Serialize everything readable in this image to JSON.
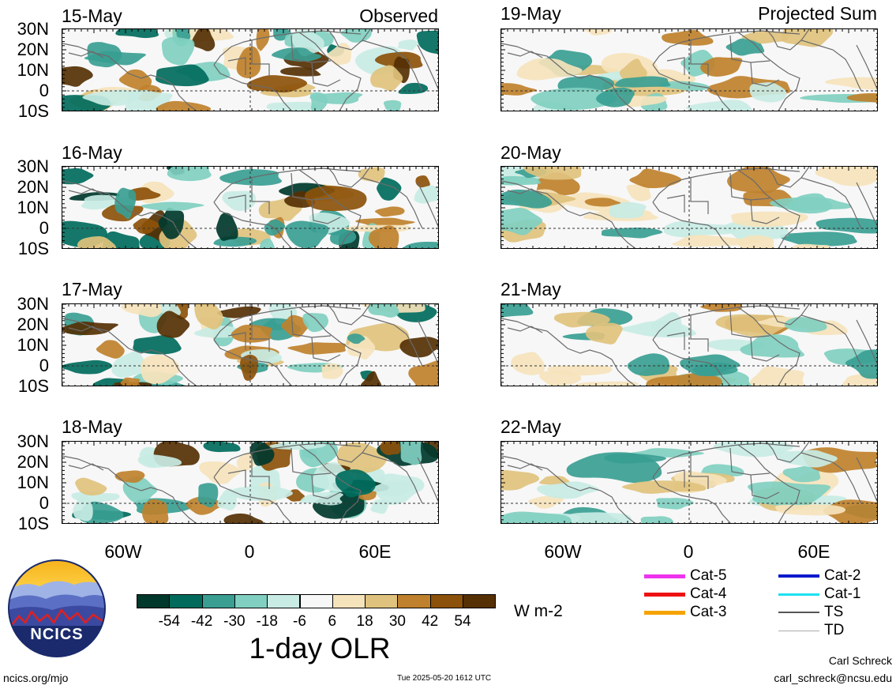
{
  "header": {
    "left_label": "Observed",
    "right_label": "Projected Sum"
  },
  "observed_panels": [
    {
      "date": "15-May"
    },
    {
      "date": "16-May"
    },
    {
      "date": "17-May"
    },
    {
      "date": "18-May"
    }
  ],
  "projected_panels": [
    {
      "date": "19-May"
    },
    {
      "date": "20-May"
    },
    {
      "date": "21-May"
    },
    {
      "date": "22-May"
    }
  ],
  "y_axis_labels": [
    "30N",
    "20N",
    "10N",
    "0",
    "10S"
  ],
  "x_axis_labels": [
    "60W",
    "0",
    "60E"
  ],
  "colorbar": {
    "title": "1-day OLR",
    "units": "W m-2",
    "tick_labels": [
      "-54",
      "-42",
      "-30",
      "-18",
      "-6",
      "6",
      "18",
      "30",
      "42",
      "54"
    ],
    "colors": [
      "#00382c",
      "#006b5c",
      "#3a9e92",
      "#80cfc0",
      "#c8ebe4",
      "#f7f7f7",
      "#f5e3bb",
      "#dfc27d",
      "#bf812d",
      "#8c510a",
      "#553004"
    ]
  },
  "legend": {
    "items": [
      {
        "label": "Cat-5",
        "color": "#ee33ee"
      },
      {
        "label": "Cat-4",
        "color": "#ee1111"
      },
      {
        "label": "Cat-3",
        "color": "#f5a300"
      },
      {
        "label": "Cat-2",
        "color": "#0a1acc"
      },
      {
        "label": "Cat-1",
        "color": "#1ce0f0"
      },
      {
        "label": "TS",
        "color": "#555555"
      },
      {
        "label": "TD",
        "color": "#aaaaaa"
      }
    ]
  },
  "logo": {
    "text": "NCICS"
  },
  "footer": {
    "url": "ncics.org/mjo",
    "timestamp": "Tue 2025-05-20 1612 UTC",
    "author": "Carl Schreck",
    "email": "carl_schreck@ncsu.edu"
  }
}
